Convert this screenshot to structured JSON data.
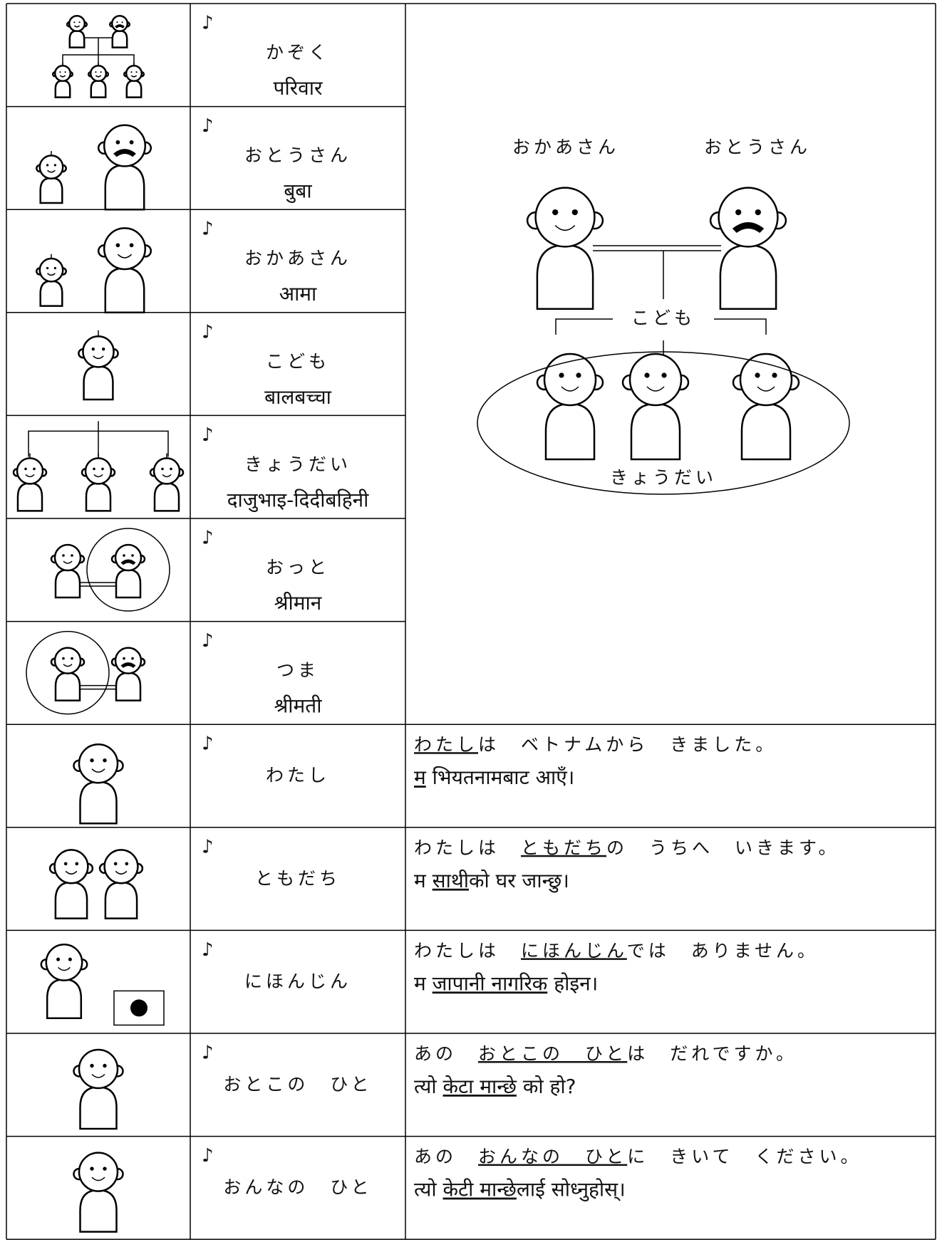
{
  "audio_icon": "♪",
  "diagram": {
    "mother": "おかあさん",
    "father": "おとうさん",
    "children": "こども",
    "siblings": "きょうだい"
  },
  "vocabulary": [
    {
      "word": "かぞく",
      "translation": "परिवार"
    },
    {
      "word": "おとうさん",
      "translation": "बुबा"
    },
    {
      "word": "おかあさん",
      "translation": "आमा"
    },
    {
      "word": "こども",
      "translation": "बालबच्चा"
    },
    {
      "word": "きょうだい",
      "translation": "दाजुभाइ-दिदीबहिनी"
    },
    {
      "word": "おっと",
      "translation": "श्रीमान"
    },
    {
      "word": "つま",
      "translation": "श्रीमती"
    },
    {
      "word": "わたし",
      "example": {
        "japanese": [
          {
            "text": "わたし",
            "underline": true
          },
          {
            "text": "は　ベトナムから　きました。"
          }
        ],
        "nepali": [
          {
            "text": "म",
            "underline": true
          },
          {
            "text": " भियतनामबाट आएँ।"
          }
        ]
      }
    },
    {
      "word": "ともだち",
      "example": {
        "japanese": [
          {
            "text": "わたしは　"
          },
          {
            "text": "ともだち",
            "underline": true
          },
          {
            "text": "の　うちへ　いきます。"
          }
        ],
        "nepali": [
          {
            "text": "म "
          },
          {
            "text": "साथी",
            "underline": true
          },
          {
            "text": "को घर जान्छु।"
          }
        ]
      }
    },
    {
      "word": "にほんじん",
      "example": {
        "japanese": [
          {
            "text": "わたしは　"
          },
          {
            "text": "にほんじん",
            "underline": true
          },
          {
            "text": "では　ありません。"
          }
        ],
        "nepali": [
          {
            "text": "म "
          },
          {
            "text": "जापानी नागरिक",
            "underline": true
          },
          {
            "text": " होइन।"
          }
        ]
      }
    },
    {
      "word": "おとこの　ひと",
      "example": {
        "japanese": [
          {
            "text": "あの　"
          },
          {
            "text": "おとこの　ひと",
            "underline": true
          },
          {
            "text": "は　だれですか。"
          }
        ],
        "nepali": [
          {
            "text": "त्यो "
          },
          {
            "text": "केटा मान्छे",
            "underline": true
          },
          {
            "text": " को हो?"
          }
        ]
      }
    },
    {
      "word": "おんなの　ひと",
      "example": {
        "japanese": [
          {
            "text": "あの　"
          },
          {
            "text": "おんなの　ひと",
            "underline": true
          },
          {
            "text": "に　きいて　ください。"
          }
        ],
        "nepali": [
          {
            "text": "त्यो "
          },
          {
            "text": "केटी मान्छे",
            "underline": true
          },
          {
            "text": "लाई सोध्नुहोस्।"
          }
        ]
      }
    }
  ]
}
